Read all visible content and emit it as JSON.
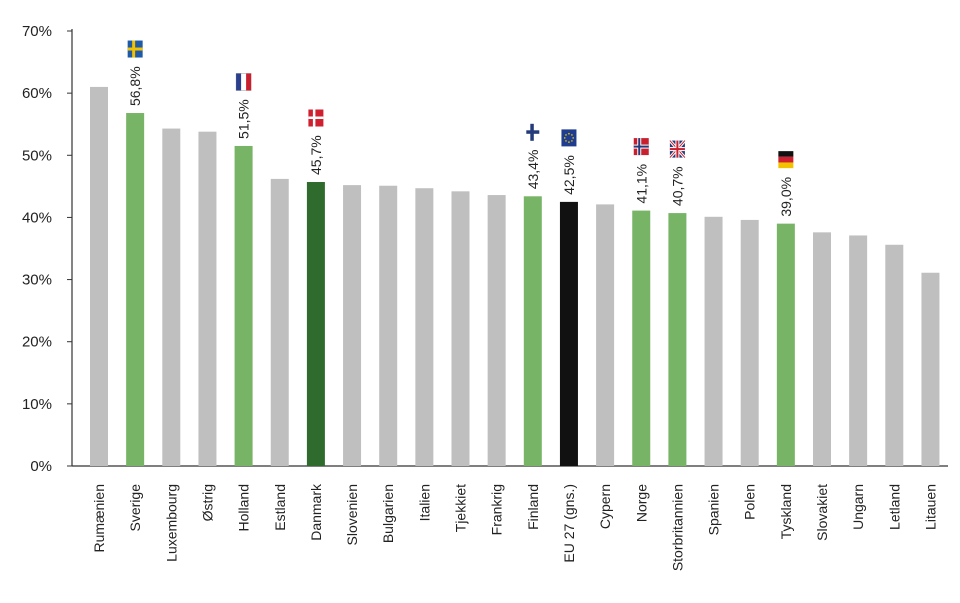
{
  "chart_data": {
    "type": "bar",
    "ylim": [
      0,
      70
    ],
    "y_ticks": [
      "0%",
      "10%",
      "20%",
      "30%",
      "40%",
      "50%",
      "60%",
      "70%"
    ],
    "grid": false,
    "colors": {
      "default": "#bfbfbf",
      "highlight": "#77b466",
      "denmark": "#2e6b2c",
      "eu": "#111111"
    },
    "categories": [
      "Rumænien",
      "Sverige",
      "Luxembourg",
      "Østrig",
      "Holland",
      "Estland",
      "Danmark",
      "Slovenien",
      "Bulgarien",
      "Italien",
      "Tjekkiet",
      "Frankrig",
      "Finland",
      "EU 27 (gns.)",
      "Cypern",
      "Norge",
      "Storbritannien",
      "Spanien",
      "Polen",
      "Tyskland",
      "Slovakiet",
      "Ungarn",
      "Letland",
      "Litauen"
    ],
    "values": [
      61.0,
      56.8,
      54.3,
      53.8,
      51.5,
      46.2,
      45.7,
      45.2,
      45.1,
      44.7,
      44.2,
      43.6,
      43.4,
      42.5,
      42.1,
      41.1,
      40.7,
      40.1,
      39.6,
      39.0,
      37.6,
      37.1,
      35.6,
      31.1
    ],
    "styles": [
      "default",
      "highlight",
      "default",
      "default",
      "highlight",
      "default",
      "denmark",
      "default",
      "default",
      "default",
      "default",
      "default",
      "highlight",
      "eu",
      "default",
      "highlight",
      "highlight",
      "default",
      "default",
      "highlight",
      "default",
      "default",
      "default",
      "default"
    ],
    "data_labels": [
      "",
      "56,8%",
      "",
      "",
      "51,5%",
      "",
      "45,7%",
      "",
      "",
      "",
      "",
      "",
      "43,4%",
      "42,5%",
      "",
      "41,1%",
      "40,7%",
      "",
      "",
      "39,0%",
      "",
      "",
      "",
      ""
    ],
    "flags": [
      "",
      "sweden-flag-icon",
      "",
      "",
      "netherlands-flag-icon",
      "",
      "denmark-flag-icon",
      "",
      "",
      "",
      "",
      "",
      "finland-flag-icon",
      "eu-flag-icon",
      "",
      "norway-flag-icon",
      "uk-flag-icon",
      "",
      "",
      "germany-flag-icon",
      "",
      "",
      "",
      ""
    ]
  }
}
